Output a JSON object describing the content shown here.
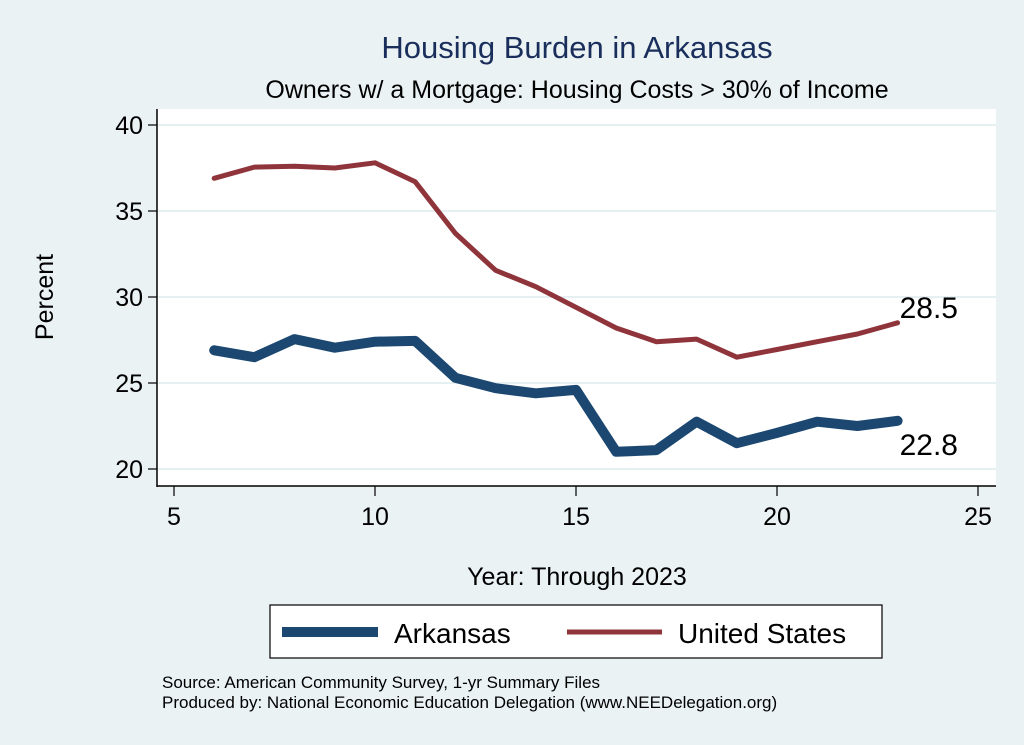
{
  "chart_data": {
    "type": "line",
    "title": "Housing Burden in Arkansas",
    "subtitle": "Owners w/ a Mortgage: Housing Costs > 30% of Income",
    "xlabel": "Year: Through 2023",
    "ylabel": "Percent",
    "xlim": [
      5,
      25
    ],
    "ylim": [
      20,
      40
    ],
    "x_ticks": [
      5,
      10,
      15,
      20,
      25
    ],
    "y_ticks": [
      20,
      25,
      30,
      35,
      40
    ],
    "grid": "horizontal",
    "x": [
      6,
      7,
      8,
      9,
      10,
      11,
      12,
      13,
      14,
      15,
      16,
      17,
      18,
      19,
      20,
      21,
      22,
      23
    ],
    "series": [
      {
        "name": "Arkansas",
        "color": "#1b4770",
        "values": [
          26.9,
          26.5,
          27.55,
          27.05,
          27.4,
          27.45,
          25.3,
          24.7,
          24.4,
          24.6,
          21.0,
          21.1,
          22.75,
          21.5,
          22.1,
          22.75,
          22.5,
          22.8
        ],
        "end_label": "22.8"
      },
      {
        "name": "United States",
        "color": "#8f343b",
        "values": [
          36.9,
          37.55,
          37.6,
          37.5,
          37.8,
          36.7,
          33.7,
          31.55,
          30.6,
          29.4,
          28.2,
          27.4,
          27.55,
          26.5,
          26.95,
          27.4,
          27.85,
          28.5
        ],
        "end_label": "28.5"
      }
    ],
    "legend": {
      "placement": "bottom",
      "entries": [
        "Arkansas",
        "United States"
      ]
    },
    "notes": [
      "Source: American Community Survey, 1-yr Summary Files",
      "Produced by: National Economic Education Delegation (www.NEEDelegation.org)"
    ]
  }
}
